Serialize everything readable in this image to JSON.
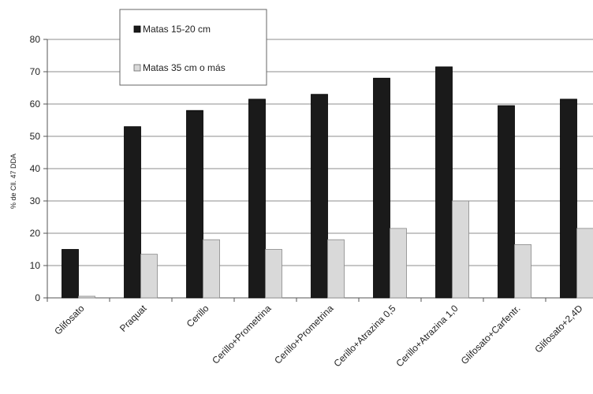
{
  "chart_data": {
    "type": "bar",
    "categories": [
      "Glifosato",
      "Praquat",
      "Cerillo",
      "Cerillo+Prometrina",
      "Cerillo+Prometrina",
      "Cerillo+Atrazina 0,5",
      "Cerillo+Atrazina 1,0",
      "Glifosato+Carfentr.",
      "Glifosato+2,4D"
    ],
    "series": [
      {
        "name": "Matas 15-20 cm",
        "values": [
          15,
          53,
          58,
          61.5,
          63,
          68,
          71.5,
          59.5,
          61.5
        ],
        "color": "#1a1a1a"
      },
      {
        "name": "Matas 35 cm o más",
        "values": [
          0.5,
          13.5,
          18,
          15,
          18,
          21.5,
          30,
          16.5,
          21.5
        ],
        "color": "#d9d9d9"
      }
    ],
    "title": "",
    "xlabel": "",
    "ylabel": "% de Cll. 47 DDA",
    "ylim": [
      0,
      80
    ],
    "yticks": [
      0,
      10,
      20,
      30,
      40,
      50,
      60,
      70,
      80
    ],
    "grid": true,
    "legend_position": "top-left"
  }
}
